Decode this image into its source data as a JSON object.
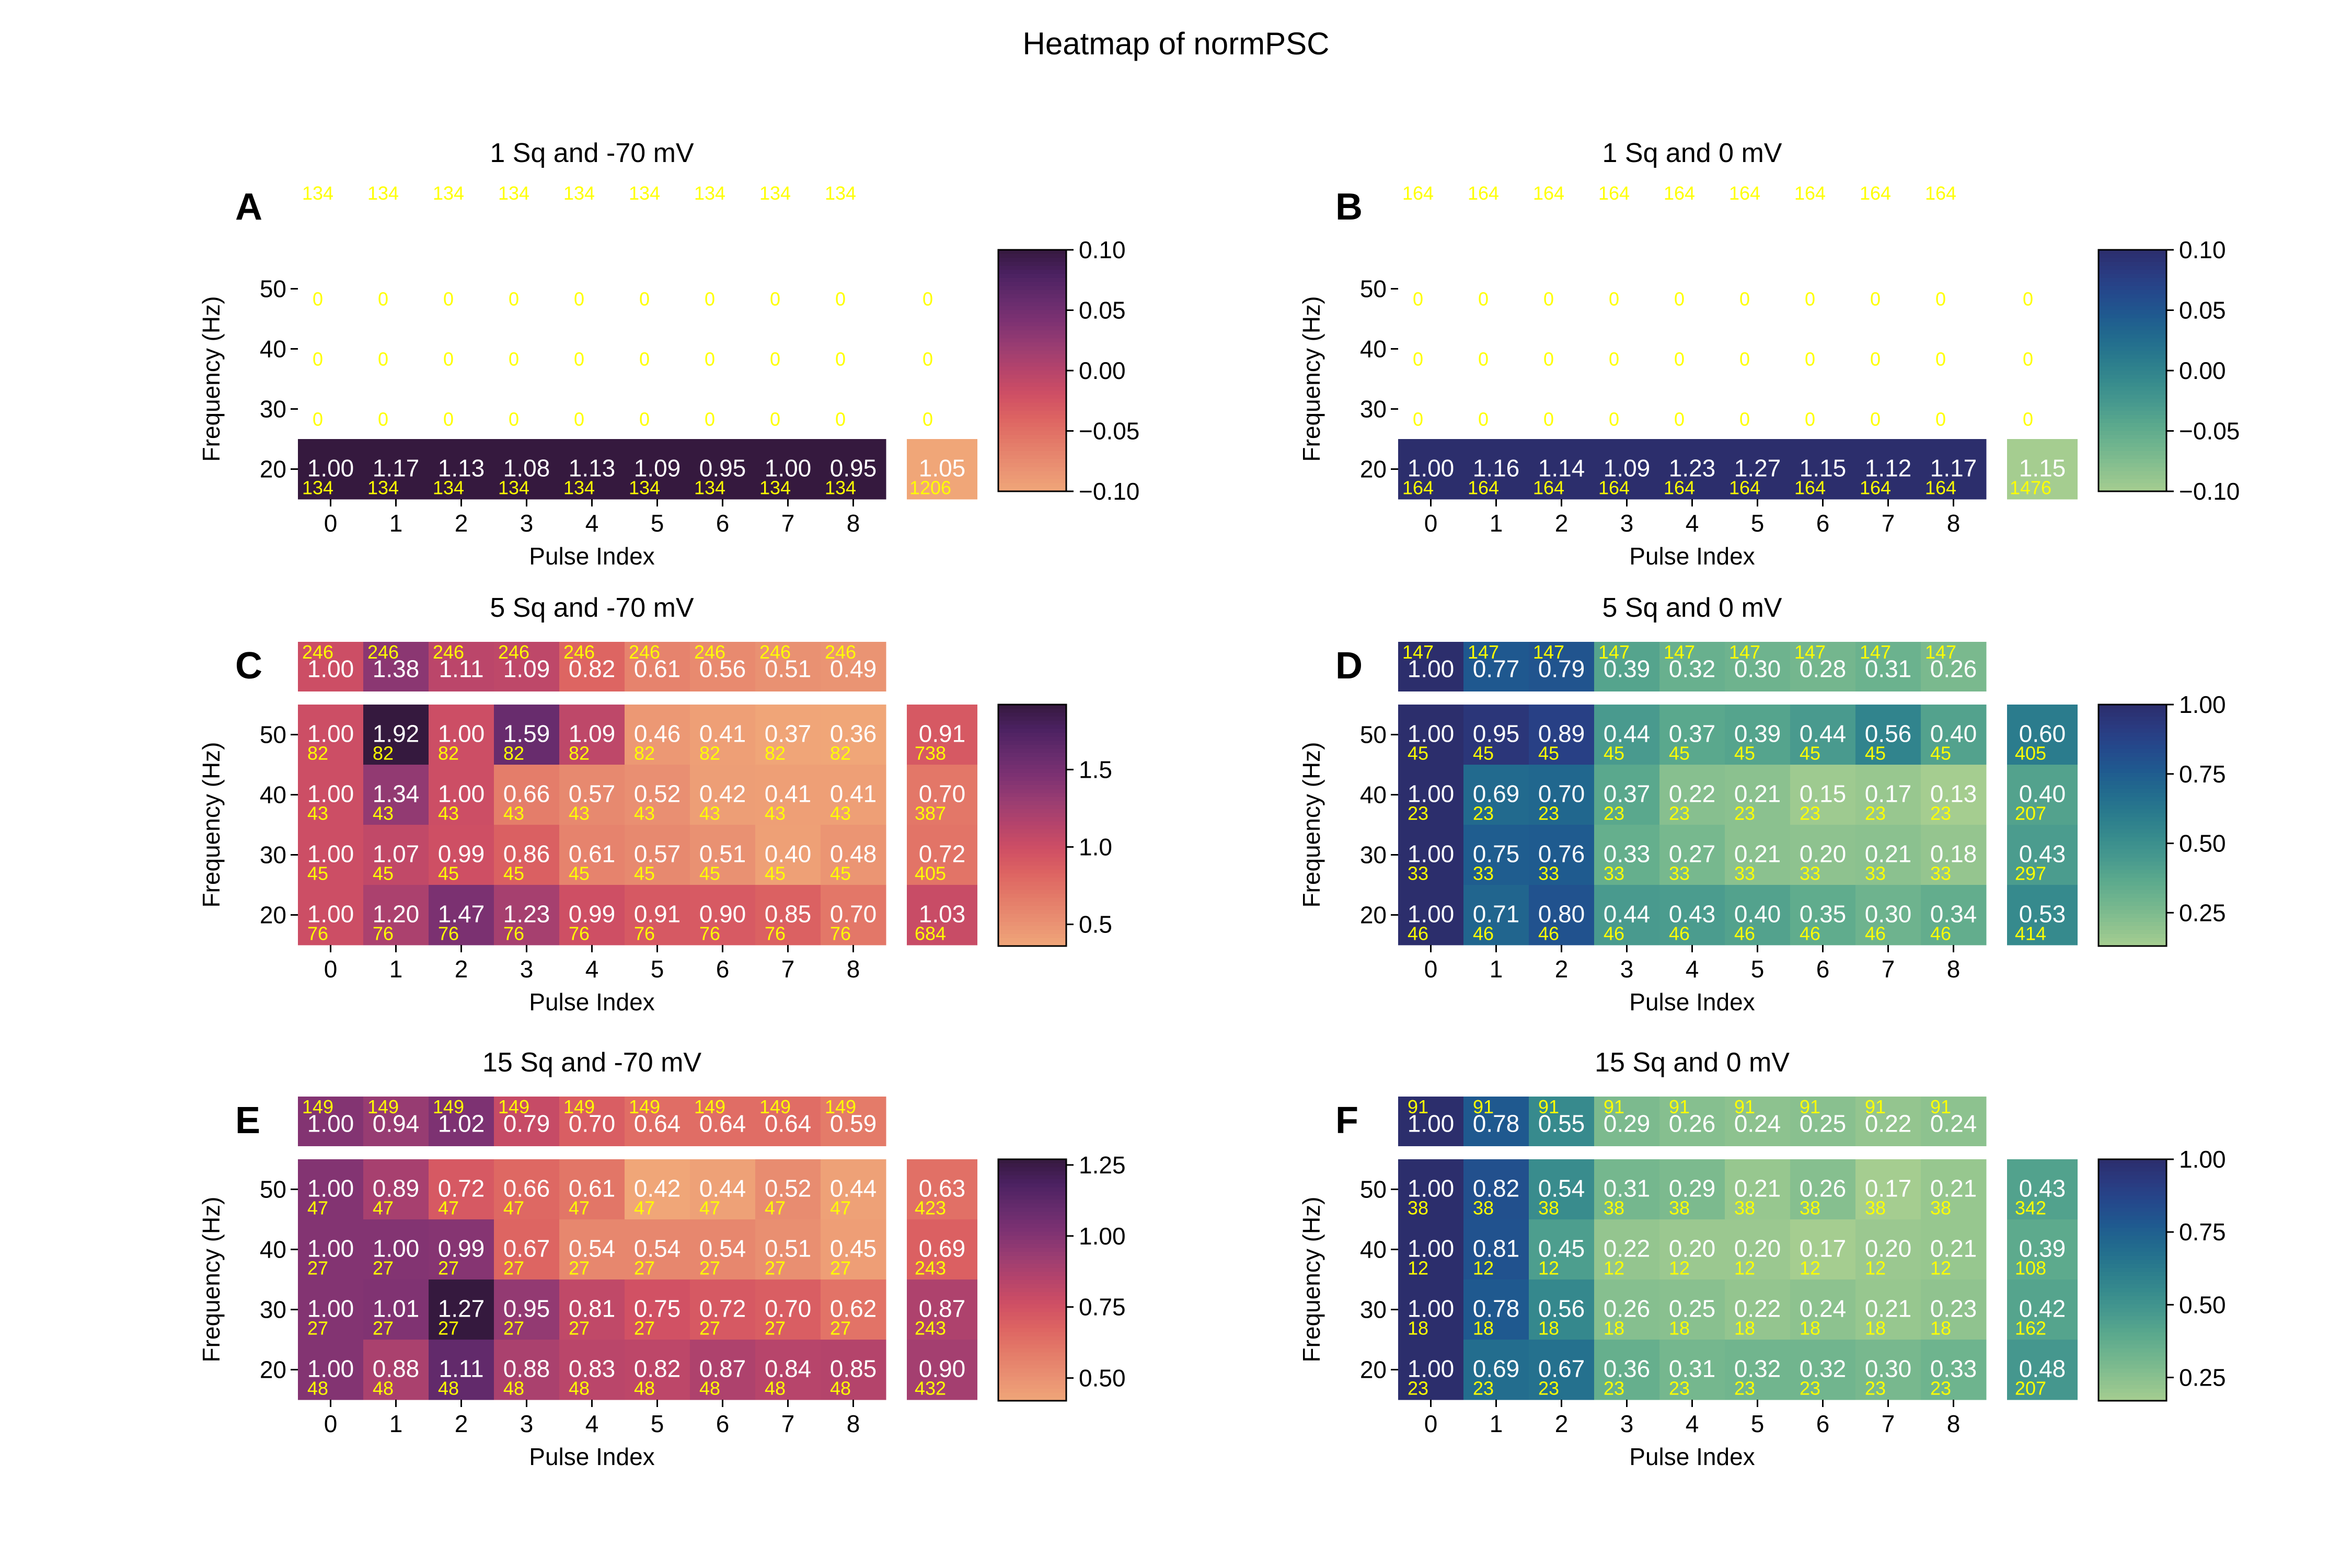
{
  "page": {
    "title": "Heatmap of normPSC"
  },
  "colormaps": {
    "flare_r": [
      "#f0a678",
      "#e99072",
      "#e47b69",
      "#dd6462",
      "#cf4f64",
      "#b6446b",
      "#9a3d72",
      "#7e3272",
      "#652b6c",
      "#4b2161",
      "#35193e"
    ],
    "crest_r": [
      "#a5cd90",
      "#8bc18f",
      "#71b58e",
      "#5ba98d",
      "#47998e",
      "#378b8d",
      "#2a7b8d",
      "#226b8e",
      "#1f5a8f",
      "#24498c",
      "#2a3a80",
      "#2c2e6c"
    ]
  },
  "label_colors": {
    "value": "#ffffff",
    "count": "#ffff00"
  },
  "chart_data": [
    {
      "panel": "A",
      "title": "1 Sq and -70 mV",
      "type": "heatmap",
      "cmap": "flare_r",
      "xlabel": "Pulse Index",
      "ylabel": "Frequency (Hz)",
      "x": [
        0,
        1,
        2,
        3,
        4,
        5,
        6,
        7,
        8
      ],
      "top_row": {
        "values": [
          null,
          null,
          null,
          null,
          null,
          null,
          null,
          null,
          null
        ],
        "counts": [
          134,
          134,
          134,
          134,
          134,
          134,
          134,
          134,
          134
        ]
      },
      "rows": [
        {
          "freq": 50,
          "values": [
            null,
            null,
            null,
            null,
            null,
            null,
            null,
            null,
            null
          ],
          "counts": [
            0,
            0,
            0,
            0,
            0,
            0,
            0,
            0,
            0
          ],
          "side": {
            "value": null,
            "count": 0
          }
        },
        {
          "freq": 40,
          "values": [
            null,
            null,
            null,
            null,
            null,
            null,
            null,
            null,
            null
          ],
          "counts": [
            0,
            0,
            0,
            0,
            0,
            0,
            0,
            0,
            0
          ],
          "side": {
            "value": null,
            "count": 0
          }
        },
        {
          "freq": 30,
          "values": [
            null,
            null,
            null,
            null,
            null,
            null,
            null,
            null,
            null
          ],
          "counts": [
            0,
            0,
            0,
            0,
            0,
            0,
            0,
            0,
            0
          ],
          "side": {
            "value": null,
            "count": 0
          }
        },
        {
          "freq": 20,
          "values": [
            1.0,
            1.17,
            1.13,
            1.08,
            1.13,
            1.09,
            0.95,
            1.0,
            0.95
          ],
          "counts": [
            134,
            134,
            134,
            134,
            134,
            134,
            134,
            134,
            134
          ],
          "side": {
            "value": 1.05,
            "count": 1206
          }
        }
      ],
      "colorbar": {
        "ticks": [
          0.1,
          0.05,
          0.0,
          -0.05,
          -0.1
        ],
        "tick_labels": [
          "0.10",
          "0.05",
          "0.00",
          "−0.05",
          "−0.10"
        ],
        "range": [
          -0.1,
          0.1
        ],
        "fixed_color": "#35193e",
        "side_color": "#f0a678"
      }
    },
    {
      "panel": "B",
      "title": "1 Sq and 0 mV",
      "type": "heatmap",
      "cmap": "crest_r",
      "xlabel": "Pulse Index",
      "ylabel": "Frequency (Hz)",
      "x": [
        0,
        1,
        2,
        3,
        4,
        5,
        6,
        7,
        8
      ],
      "top_row": {
        "values": [
          null,
          null,
          null,
          null,
          null,
          null,
          null,
          null,
          null
        ],
        "counts": [
          164,
          164,
          164,
          164,
          164,
          164,
          164,
          164,
          164
        ]
      },
      "rows": [
        {
          "freq": 50,
          "values": [
            null,
            null,
            null,
            null,
            null,
            null,
            null,
            null,
            null
          ],
          "counts": [
            0,
            0,
            0,
            0,
            0,
            0,
            0,
            0,
            0
          ],
          "side": {
            "value": null,
            "count": 0
          }
        },
        {
          "freq": 40,
          "values": [
            null,
            null,
            null,
            null,
            null,
            null,
            null,
            null,
            null
          ],
          "counts": [
            0,
            0,
            0,
            0,
            0,
            0,
            0,
            0,
            0
          ],
          "side": {
            "value": null,
            "count": 0
          }
        },
        {
          "freq": 30,
          "values": [
            null,
            null,
            null,
            null,
            null,
            null,
            null,
            null,
            null
          ],
          "counts": [
            0,
            0,
            0,
            0,
            0,
            0,
            0,
            0,
            0
          ],
          "side": {
            "value": null,
            "count": 0
          }
        },
        {
          "freq": 20,
          "values": [
            1.0,
            1.16,
            1.14,
            1.09,
            1.23,
            1.27,
            1.15,
            1.12,
            1.17
          ],
          "counts": [
            164,
            164,
            164,
            164,
            164,
            164,
            164,
            164,
            164
          ],
          "side": {
            "value": 1.15,
            "count": 1476
          }
        }
      ],
      "colorbar": {
        "ticks": [
          0.1,
          0.05,
          0.0,
          -0.05,
          -0.1
        ],
        "tick_labels": [
          "0.10",
          "0.05",
          "0.00",
          "−0.05",
          "−0.10"
        ],
        "range": [
          -0.1,
          0.1
        ],
        "fixed_color": "#2c2e6c",
        "side_color": "#a5cd90"
      }
    },
    {
      "panel": "C",
      "title": "5 Sq and -70 mV",
      "type": "heatmap",
      "cmap": "flare_r",
      "xlabel": "Pulse Index",
      "ylabel": "Frequency (Hz)",
      "x": [
        0,
        1,
        2,
        3,
        4,
        5,
        6,
        7,
        8
      ],
      "top_row": {
        "values": [
          1.0,
          1.38,
          1.11,
          1.09,
          0.82,
          0.61,
          0.56,
          0.51,
          0.49
        ],
        "counts": [
          246,
          246,
          246,
          246,
          246,
          246,
          246,
          246,
          246
        ]
      },
      "rows": [
        {
          "freq": 50,
          "values": [
            1.0,
            1.92,
            1.0,
            1.59,
            1.09,
            0.46,
            0.41,
            0.37,
            0.36
          ],
          "counts": [
            82,
            82,
            82,
            82,
            82,
            82,
            82,
            82,
            82
          ],
          "side": {
            "value": 0.91,
            "count": 738
          }
        },
        {
          "freq": 40,
          "values": [
            1.0,
            1.34,
            1.0,
            0.66,
            0.57,
            0.52,
            0.42,
            0.41,
            0.41
          ],
          "counts": [
            43,
            43,
            43,
            43,
            43,
            43,
            43,
            43,
            43
          ],
          "side": {
            "value": 0.7,
            "count": 387
          }
        },
        {
          "freq": 30,
          "values": [
            1.0,
            1.07,
            0.99,
            0.86,
            0.61,
            0.57,
            0.51,
            0.4,
            0.48
          ],
          "counts": [
            45,
            45,
            45,
            45,
            45,
            45,
            45,
            45,
            45
          ],
          "side": {
            "value": 0.72,
            "count": 405
          }
        },
        {
          "freq": 20,
          "values": [
            1.0,
            1.2,
            1.47,
            1.23,
            0.99,
            0.91,
            0.9,
            0.85,
            0.7
          ],
          "counts": [
            76,
            76,
            76,
            76,
            76,
            76,
            76,
            76,
            76
          ],
          "side": {
            "value": 1.03,
            "count": 684
          }
        }
      ],
      "colorbar": {
        "ticks": [
          1.5,
          1.0,
          0.5
        ],
        "tick_labels": [
          "1.5",
          "1.0",
          "0.5"
        ],
        "range": [
          0.36,
          1.92
        ]
      }
    },
    {
      "panel": "D",
      "title": "5 Sq and 0 mV",
      "type": "heatmap",
      "cmap": "crest_r",
      "xlabel": "Pulse Index",
      "ylabel": "Frequency (Hz)",
      "x": [
        0,
        1,
        2,
        3,
        4,
        5,
        6,
        7,
        8
      ],
      "top_row": {
        "values": [
          1.0,
          0.77,
          0.79,
          0.39,
          0.32,
          0.3,
          0.28,
          0.31,
          0.26
        ],
        "counts": [
          147,
          147,
          147,
          147,
          147,
          147,
          147,
          147,
          147
        ]
      },
      "rows": [
        {
          "freq": 50,
          "values": [
            1.0,
            0.95,
            0.89,
            0.44,
            0.37,
            0.39,
            0.44,
            0.56,
            0.4
          ],
          "counts": [
            45,
            45,
            45,
            45,
            45,
            45,
            45,
            45,
            45
          ],
          "side": {
            "value": 0.6,
            "count": 405
          }
        },
        {
          "freq": 40,
          "values": [
            1.0,
            0.69,
            0.7,
            0.37,
            0.22,
            0.21,
            0.15,
            0.17,
            0.13
          ],
          "counts": [
            23,
            23,
            23,
            23,
            23,
            23,
            23,
            23,
            23
          ],
          "side": {
            "value": 0.4,
            "count": 207
          }
        },
        {
          "freq": 30,
          "values": [
            1.0,
            0.75,
            0.76,
            0.33,
            0.27,
            0.21,
            0.2,
            0.21,
            0.18
          ],
          "counts": [
            33,
            33,
            33,
            33,
            33,
            33,
            33,
            33,
            33
          ],
          "side": {
            "value": 0.43,
            "count": 297
          }
        },
        {
          "freq": 20,
          "values": [
            1.0,
            0.71,
            0.8,
            0.44,
            0.43,
            0.4,
            0.35,
            0.3,
            0.34
          ],
          "counts": [
            46,
            46,
            46,
            46,
            46,
            46,
            46,
            46,
            46
          ],
          "side": {
            "value": 0.53,
            "count": 414
          }
        }
      ],
      "colorbar": {
        "ticks": [
          1.0,
          0.75,
          0.5,
          0.25
        ],
        "tick_labels": [
          "1.00",
          "0.75",
          "0.50",
          "0.25"
        ],
        "range": [
          0.13,
          1.0
        ]
      }
    },
    {
      "panel": "E",
      "title": "15 Sq and -70 mV",
      "type": "heatmap",
      "cmap": "flare_r",
      "xlabel": "Pulse Index",
      "ylabel": "Frequency (Hz)",
      "x": [
        0,
        1,
        2,
        3,
        4,
        5,
        6,
        7,
        8
      ],
      "top_row": {
        "values": [
          1.0,
          0.94,
          1.02,
          0.79,
          0.7,
          0.64,
          0.64,
          0.64,
          0.59
        ],
        "counts": [
          149,
          149,
          149,
          149,
          149,
          149,
          149,
          149,
          149
        ]
      },
      "rows": [
        {
          "freq": 50,
          "values": [
            1.0,
            0.89,
            0.72,
            0.66,
            0.61,
            0.42,
            0.44,
            0.52,
            0.44
          ],
          "counts": [
            47,
            47,
            47,
            47,
            47,
            47,
            47,
            47,
            47
          ],
          "side": {
            "value": 0.63,
            "count": 423
          }
        },
        {
          "freq": 40,
          "values": [
            1.0,
            1.0,
            0.99,
            0.67,
            0.54,
            0.54,
            0.54,
            0.51,
            0.45
          ],
          "counts": [
            27,
            27,
            27,
            27,
            27,
            27,
            27,
            27,
            27
          ],
          "side": {
            "value": 0.69,
            "count": 243
          }
        },
        {
          "freq": 30,
          "values": [
            1.0,
            1.01,
            1.27,
            0.95,
            0.81,
            0.75,
            0.72,
            0.7,
            0.62
          ],
          "counts": [
            27,
            27,
            27,
            27,
            27,
            27,
            27,
            27,
            27
          ],
          "side": {
            "value": 0.87,
            "count": 243
          }
        },
        {
          "freq": 20,
          "values": [
            1.0,
            0.88,
            1.11,
            0.88,
            0.83,
            0.82,
            0.87,
            0.84,
            0.85
          ],
          "counts": [
            48,
            48,
            48,
            48,
            48,
            48,
            48,
            48,
            48
          ],
          "side": {
            "value": 0.9,
            "count": 432
          }
        }
      ],
      "colorbar": {
        "ticks": [
          1.25,
          1.0,
          0.75,
          0.5
        ],
        "tick_labels": [
          "1.25",
          "1.00",
          "0.75",
          "0.50"
        ],
        "range": [
          0.42,
          1.27
        ]
      }
    },
    {
      "panel": "F",
      "title": "15 Sq and 0 mV",
      "type": "heatmap",
      "cmap": "crest_r",
      "xlabel": "Pulse Index",
      "ylabel": "Frequency (Hz)",
      "x": [
        0,
        1,
        2,
        3,
        4,
        5,
        6,
        7,
        8
      ],
      "top_row": {
        "values": [
          1.0,
          0.78,
          0.55,
          0.29,
          0.26,
          0.24,
          0.25,
          0.22,
          0.24
        ],
        "counts": [
          91,
          91,
          91,
          91,
          91,
          91,
          91,
          91,
          91
        ]
      },
      "rows": [
        {
          "freq": 50,
          "values": [
            1.0,
            0.82,
            0.54,
            0.31,
            0.29,
            0.21,
            0.26,
            0.17,
            0.21
          ],
          "counts": [
            38,
            38,
            38,
            38,
            38,
            38,
            38,
            38,
            38
          ],
          "side": {
            "value": 0.43,
            "count": 342
          }
        },
        {
          "freq": 40,
          "values": [
            1.0,
            0.81,
            0.45,
            0.22,
            0.2,
            0.2,
            0.17,
            0.2,
            0.21
          ],
          "counts": [
            12,
            12,
            12,
            12,
            12,
            12,
            12,
            12,
            12
          ],
          "side": {
            "value": 0.39,
            "count": 108
          }
        },
        {
          "freq": 30,
          "values": [
            1.0,
            0.78,
            0.56,
            0.26,
            0.25,
            0.22,
            0.24,
            0.21,
            0.23
          ],
          "counts": [
            18,
            18,
            18,
            18,
            18,
            18,
            18,
            18,
            18
          ],
          "side": {
            "value": 0.42,
            "count": 162
          }
        },
        {
          "freq": 20,
          "values": [
            1.0,
            0.69,
            0.67,
            0.36,
            0.31,
            0.32,
            0.32,
            0.3,
            0.33
          ],
          "counts": [
            23,
            23,
            23,
            23,
            23,
            23,
            23,
            23,
            23
          ],
          "side": {
            "value": 0.48,
            "count": 207
          }
        }
      ],
      "colorbar": {
        "ticks": [
          1.0,
          0.75,
          0.5,
          0.25
        ],
        "tick_labels": [
          "1.00",
          "0.75",
          "0.50",
          "0.25"
        ],
        "range": [
          0.17,
          1.0
        ]
      }
    }
  ]
}
